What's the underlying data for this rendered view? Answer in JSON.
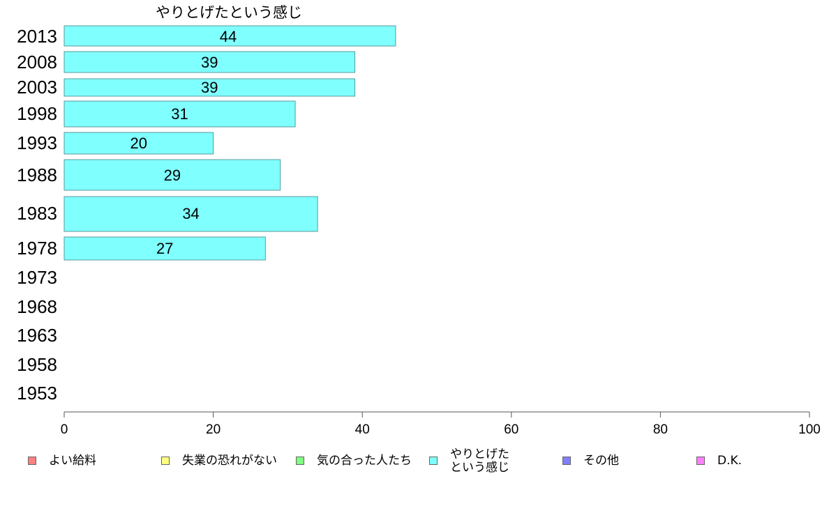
{
  "chart_data": {
    "type": "bar",
    "orientation": "horizontal",
    "title": "やりとげたという感じ",
    "categories": [
      "2013",
      "2008",
      "2003",
      "1998",
      "1993",
      "1988",
      "1983",
      "1978",
      "1973",
      "1968",
      "1963",
      "1958",
      "1953"
    ],
    "values": [
      44,
      39,
      39,
      31,
      20,
      29,
      34,
      27,
      null,
      null,
      null,
      null,
      null
    ],
    "xlim": [
      0,
      100
    ],
    "xticks": [
      "0",
      "20",
      "40",
      "60",
      "80",
      "100"
    ],
    "grid": false,
    "bar_color": "#80ffff",
    "legend_position": "bottom",
    "legend": [
      {
        "label": "よい給料",
        "color": "#ff8080"
      },
      {
        "label": "失業の恐れがない",
        "color": "#ffff80"
      },
      {
        "label": "気の合った人たち",
        "color": "#80ff80"
      },
      {
        "label": "やりとげた\nという感じ",
        "color": "#80ffff"
      },
      {
        "label": "その他",
        "color": "#8080ff"
      },
      {
        "label": "D.K.",
        "color": "#ff80ff"
      }
    ]
  }
}
